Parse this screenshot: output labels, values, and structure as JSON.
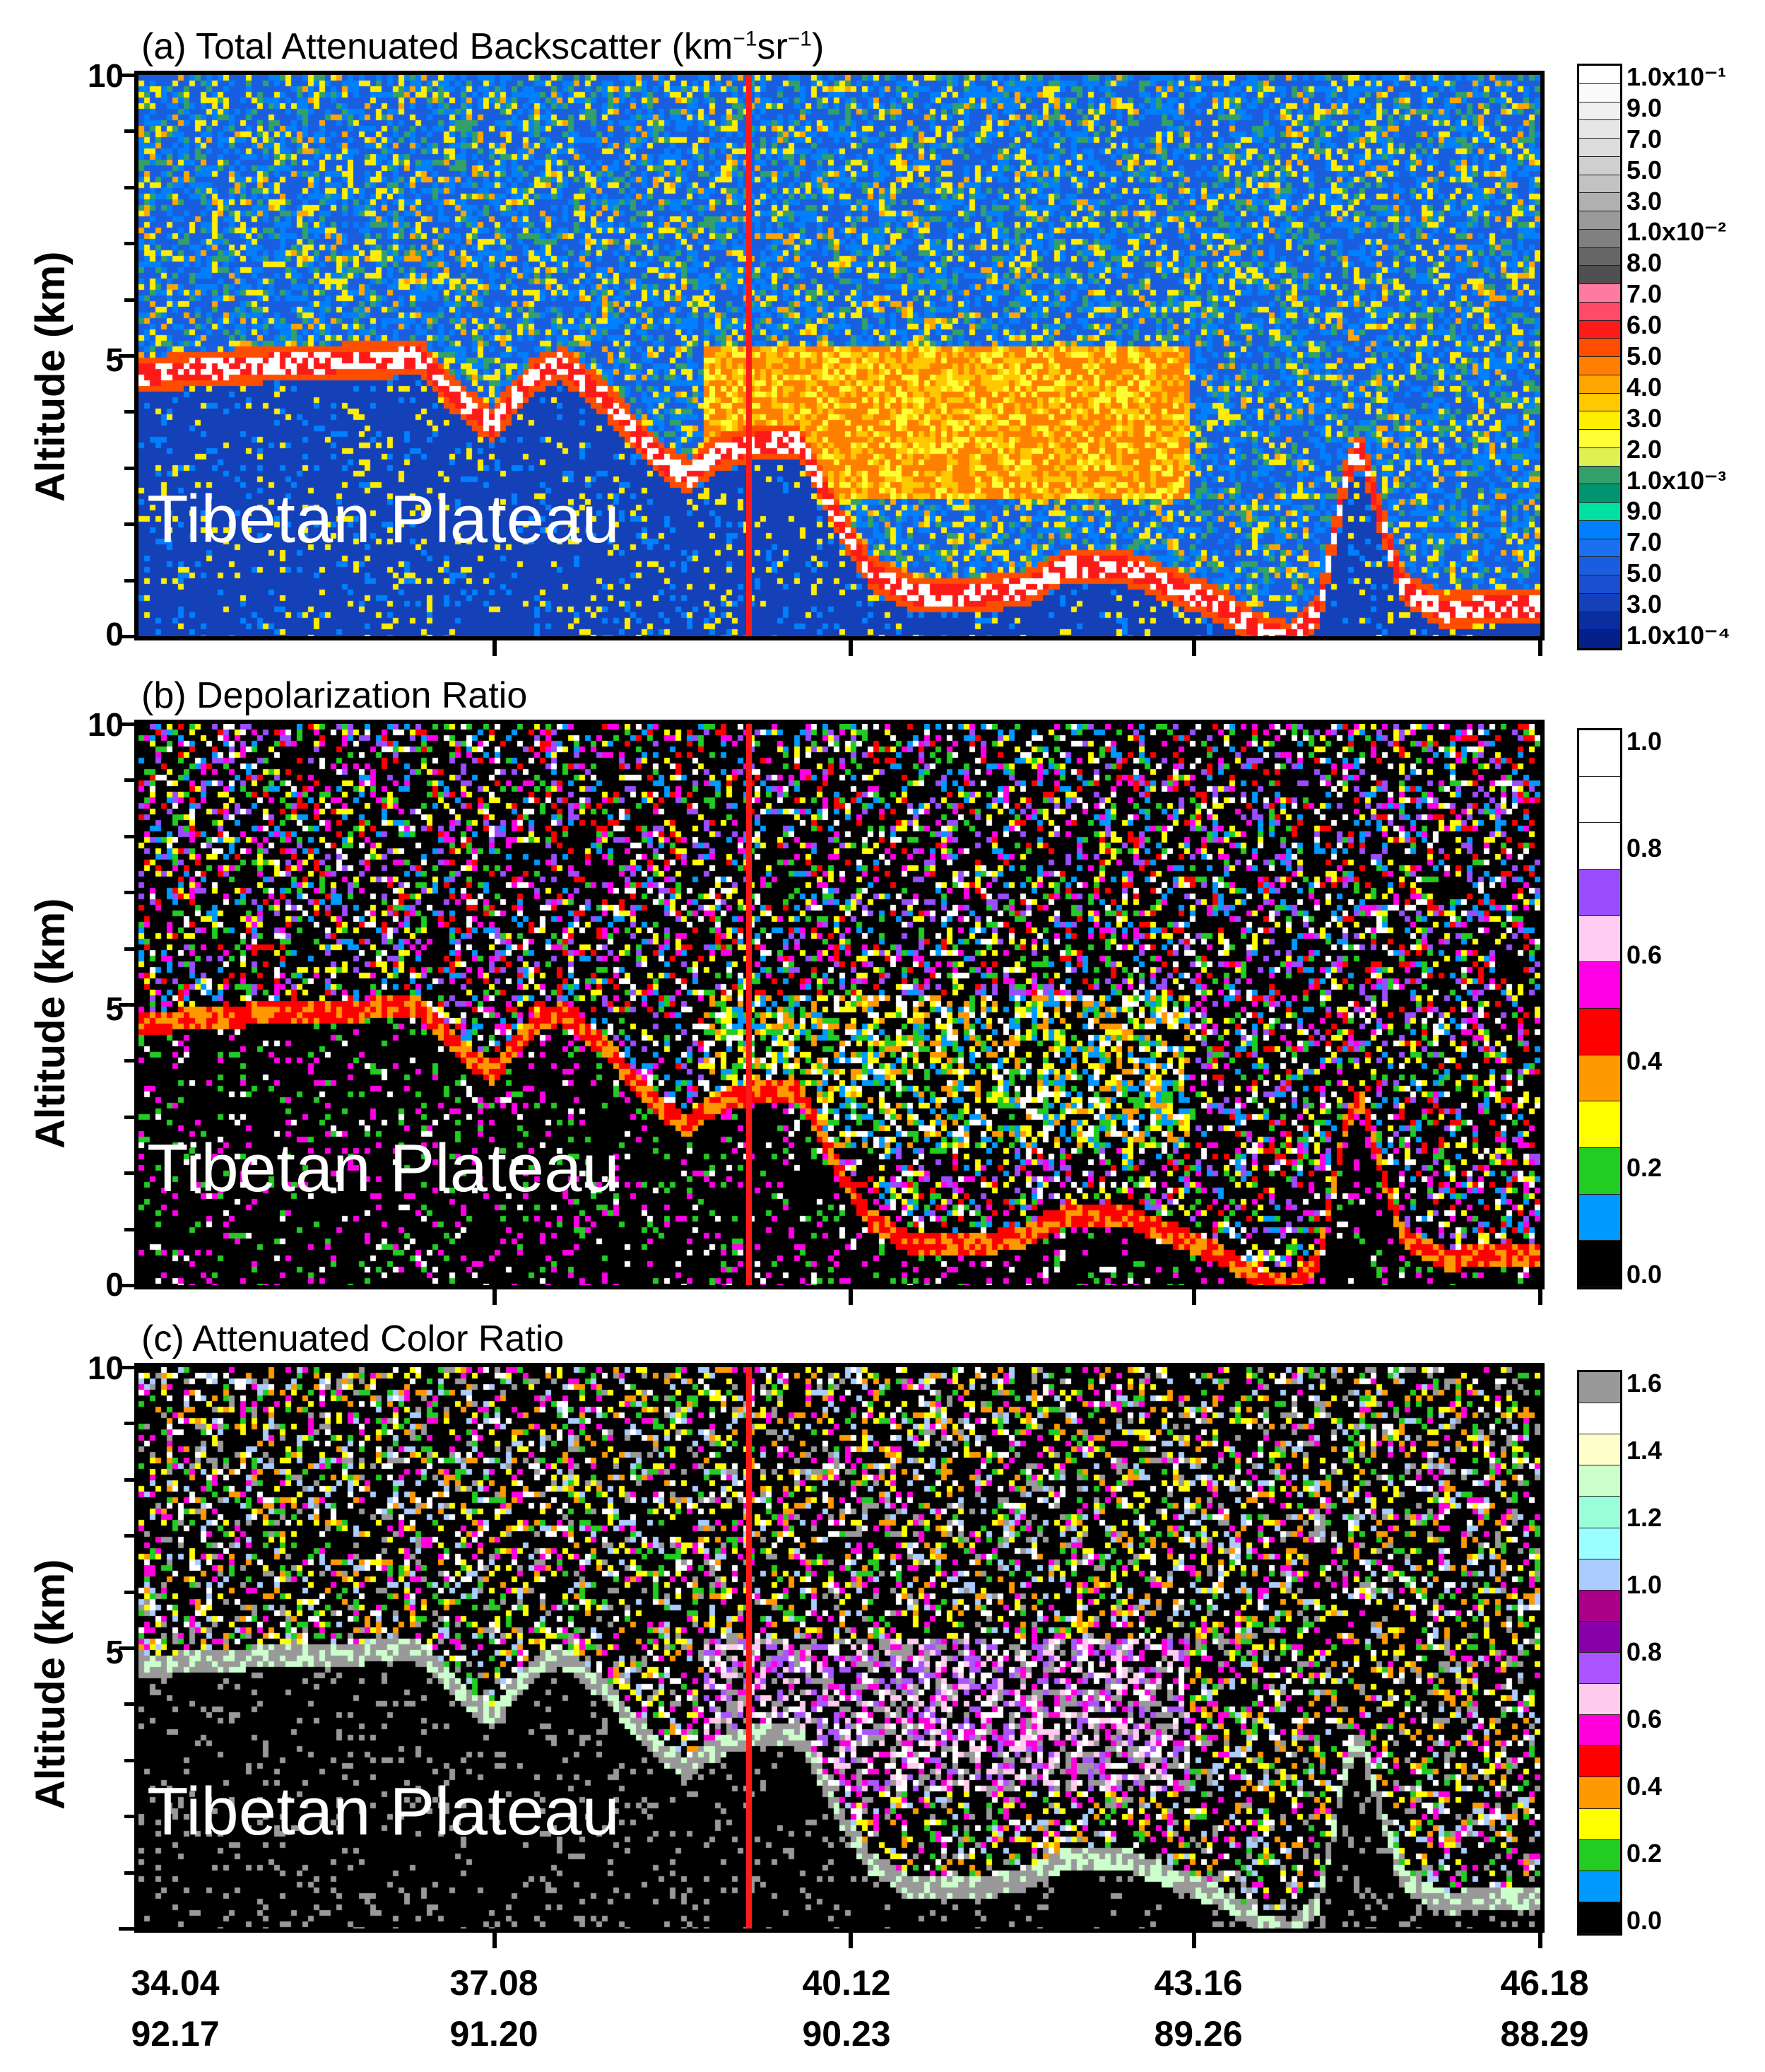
{
  "chart_data": [
    {
      "type": "heatmap",
      "panel_id": "a",
      "title_main": "(a) Total Attenuated Backscatter ",
      "title_unit_open": "(km",
      "title_unit_exp1": "−1",
      "title_unit_mid": "sr",
      "title_unit_exp2": "−1",
      "title_unit_close": ")",
      "ylabel": "Altitude (km)",
      "ylim": [
        0,
        10
      ],
      "yticks": [
        "0",
        "5",
        "10"
      ],
      "annotation": "Tibetan Plateau",
      "colorbar": {
        "colors": [
          "#ffffff",
          "#fafafa",
          "#f0f0f0",
          "#e6e6e6",
          "#dcdcdc",
          "#cfcfcf",
          "#c2c2c2",
          "#b0b0b0",
          "#9a9a9a",
          "#808080",
          "#666666",
          "#505050",
          "#ff7aa0",
          "#ff4a6a",
          "#ff1a1a",
          "#ff4d00",
          "#ff7f00",
          "#ffa500",
          "#ffc800",
          "#ffee00",
          "#ffff33",
          "#e0f050",
          "#33a06a",
          "#009470",
          "#00e0a0",
          "#0080ff",
          "#1a70f0",
          "#1a5ee0",
          "#1a4fd0",
          "#1440b8",
          "#0a2ea0",
          "#06208a"
        ],
        "labels": [
          "1.0x10⁻¹",
          "9.0",
          "7.0",
          "5.0",
          "3.0",
          "1.0x10⁻²",
          "8.0",
          "7.0",
          "6.0",
          "5.0",
          "4.0",
          "3.0",
          "2.0",
          "1.0x10⁻³",
          "9.0",
          "7.0",
          "5.0",
          "3.0",
          "1.0x10⁻⁴"
        ]
      }
    },
    {
      "type": "heatmap",
      "panel_id": "b",
      "title": "(b) Depolarization Ratio",
      "ylabel": "Altitude (km)",
      "ylim": [
        0,
        10
      ],
      "yticks": [
        "0",
        "5",
        "10"
      ],
      "annotation": "Tibetan Plateau",
      "colorbar": {
        "colors": [
          "#ffffff",
          "#ffffff",
          "#ffffff",
          "#9a4dff",
          "#ffccf2",
          "#ff00e6",
          "#ff0000",
          "#ff9900",
          "#ffff00",
          "#22cc22",
          "#0099ff",
          "#000000"
        ],
        "labels": [
          "1.0",
          "0.8",
          "0.6",
          "0.4",
          "0.2",
          "0.0"
        ]
      }
    },
    {
      "type": "heatmap",
      "panel_id": "c",
      "title": "(c) Attenuated Color Ratio",
      "ylabel": "Altitude (km)",
      "ylim": [
        0,
        10
      ],
      "yticks": [
        "",
        "5",
        "10"
      ],
      "annotation": "Tibetan Plateau",
      "colorbar": {
        "colors": [
          "#999999",
          "#ffffff",
          "#ffffcc",
          "#ccffcc",
          "#99ffd9",
          "#99ffff",
          "#aaccff",
          "#aa0088",
          "#8800aa",
          "#aa55ff",
          "#ffccee",
          "#ff00dd",
          "#ff0000",
          "#ff9900",
          "#ffff00",
          "#22cc22",
          "#0099ff",
          "#000000"
        ],
        "labels": [
          "1.6",
          "1.4",
          "1.2",
          "1.0",
          "0.8",
          "0.6",
          "0.4",
          "0.2",
          "0.0"
        ]
      }
    }
  ],
  "xaxis": {
    "latitudes": [
      "34.04",
      "37.08",
      "40.12",
      "43.16",
      "46.18"
    ],
    "longitudes": [
      "92.17",
      "91.20",
      "90.23",
      "89.26",
      "88.29"
    ]
  }
}
